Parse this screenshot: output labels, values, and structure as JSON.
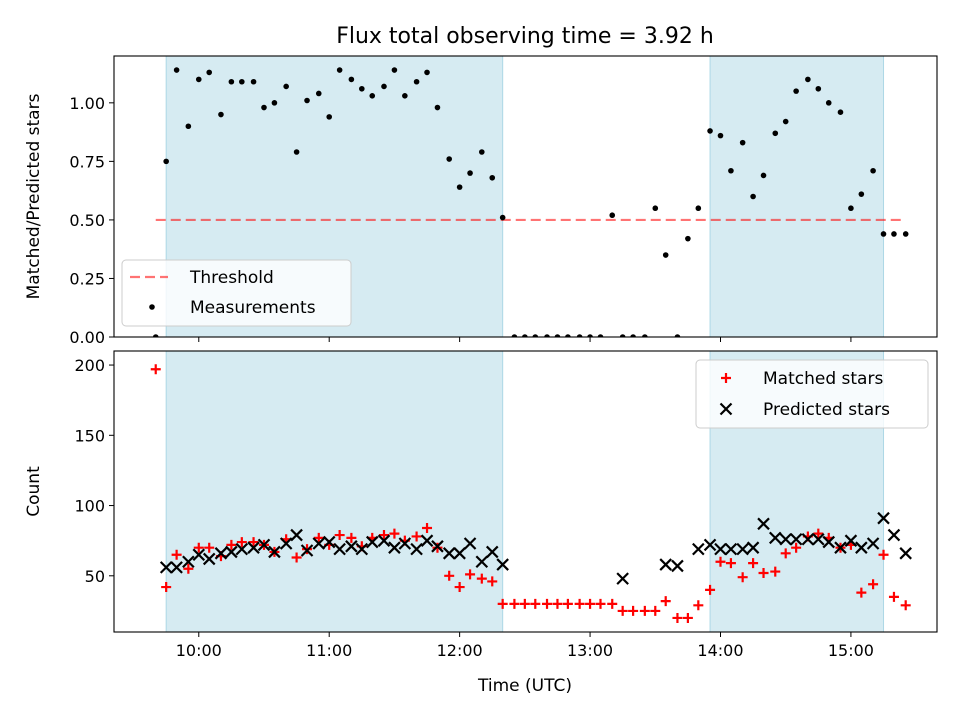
{
  "figure": {
    "title": "Flux total observing time = 3.92 h",
    "xlabel": "Time (UTC)",
    "x_ticks": [
      "10:00",
      "11:00",
      "12:00",
      "13:00",
      "14:00",
      "15:00"
    ],
    "x_tick_values": [
      10.0,
      11.0,
      12.0,
      13.0,
      14.0,
      15.0
    ],
    "xlim": [
      9.35,
      15.66
    ]
  },
  "shaded_intervals": [
    [
      9.75,
      12.33
    ],
    [
      13.92,
      15.25
    ]
  ],
  "colors": {
    "shade": "#add8e6",
    "threshold": "#ff0000",
    "measurements": "#000000",
    "matched": "#ff0000",
    "predicted": "#000000"
  },
  "chart_data": [
    {
      "type": "scatter",
      "panel": "top",
      "ylabel": "Matched/Predicted stars",
      "ylim": [
        0,
        1.2
      ],
      "y_ticks": [
        "0.00",
        "0.25",
        "0.50",
        "0.75",
        "1.00"
      ],
      "y_tick_values": [
        0,
        0.25,
        0.5,
        0.75,
        1.0
      ],
      "legend": {
        "position": "lower-left",
        "entries": [
          "Threshold",
          "Measurements"
        ]
      },
      "threshold": {
        "name": "Threshold",
        "value": 0.5,
        "x_range": [
          9.67,
          15.42
        ]
      },
      "series": [
        {
          "name": "Measurements",
          "x": [
            9.67,
            9.75,
            9.83,
            9.92,
            10.0,
            10.08,
            10.17,
            10.25,
            10.33,
            10.42,
            10.5,
            10.58,
            10.67,
            10.75,
            10.83,
            10.92,
            11.0,
            11.08,
            11.17,
            11.25,
            11.33,
            11.42,
            11.5,
            11.58,
            11.67,
            11.75,
            11.83,
            11.92,
            12.0,
            12.08,
            12.17,
            12.25,
            12.33,
            12.42,
            12.5,
            12.58,
            12.67,
            12.75,
            12.83,
            12.92,
            13.0,
            13.08,
            13.17,
            13.25,
            13.33,
            13.42,
            13.5,
            13.58,
            13.67,
            13.75,
            13.83,
            13.92,
            14.0,
            14.08,
            14.17,
            14.25,
            14.33,
            14.42,
            14.5,
            14.58,
            14.67,
            14.75,
            14.83,
            14.92,
            15.0,
            15.08,
            15.17,
            15.25,
            15.33,
            15.42
          ],
          "y": [
            0.0,
            0.75,
            1.14,
            0.9,
            1.1,
            1.13,
            0.95,
            1.09,
            1.09,
            1.09,
            0.98,
            1.0,
            1.07,
            0.79,
            1.01,
            1.04,
            0.94,
            1.14,
            1.1,
            1.06,
            1.03,
            1.07,
            1.14,
            1.03,
            1.09,
            1.13,
            0.98,
            0.76,
            0.64,
            0.7,
            0.79,
            0.68,
            0.51,
            0.0,
            0.0,
            0.0,
            0.0,
            0.0,
            0.0,
            0.0,
            0.0,
            0.0,
            0.52,
            0.0,
            0.0,
            0.0,
            0.55,
            0.35,
            0.0,
            0.42,
            0.55,
            0.88,
            0.86,
            0.71,
            0.83,
            0.6,
            0.69,
            0.87,
            0.92,
            1.05,
            1.1,
            1.06,
            1.0,
            0.96,
            0.55,
            0.61,
            0.71,
            0.44,
            0.44,
            0.44
          ]
        }
      ]
    },
    {
      "type": "scatter",
      "panel": "bottom",
      "ylabel": "Count",
      "ylim": [
        10,
        210
      ],
      "y_ticks": [
        "50",
        "100",
        "150",
        "200"
      ],
      "y_tick_values": [
        50,
        100,
        150,
        200
      ],
      "legend": {
        "position": "upper-right",
        "entries": [
          "Matched stars",
          "Predicted stars"
        ]
      },
      "series": [
        {
          "name": "Matched stars",
          "marker": "plus",
          "x": [
            9.67,
            9.75,
            9.83,
            9.92,
            10.0,
            10.08,
            10.17,
            10.25,
            10.33,
            10.42,
            10.5,
            10.58,
            10.67,
            10.75,
            10.83,
            10.92,
            11.0,
            11.08,
            11.17,
            11.25,
            11.33,
            11.42,
            11.5,
            11.58,
            11.67,
            11.75,
            11.83,
            11.92,
            12.0,
            12.08,
            12.17,
            12.25,
            12.33,
            12.42,
            12.5,
            12.58,
            12.67,
            12.75,
            12.83,
            12.92,
            13.0,
            13.08,
            13.17,
            13.25,
            13.33,
            13.42,
            13.5,
            13.58,
            13.67,
            13.75,
            13.83,
            13.92,
            14.0,
            14.08,
            14.17,
            14.25,
            14.33,
            14.42,
            14.5,
            14.58,
            14.67,
            14.75,
            14.83,
            14.92,
            15.0,
            15.08,
            15.17,
            15.25,
            15.33,
            15.42
          ],
          "y": [
            197,
            42,
            65,
            55,
            70,
            70,
            64,
            72,
            74,
            74,
            72,
            67,
            76,
            63,
            69,
            77,
            72,
            79,
            77,
            71,
            77,
            79,
            80,
            75,
            78,
            84,
            70,
            50,
            42,
            51,
            48,
            46,
            30,
            30,
            30,
            30,
            30,
            30,
            30,
            30,
            30,
            30,
            30,
            25,
            25,
            25,
            25,
            32,
            20,
            20,
            29,
            40,
            60,
            59,
            49,
            59,
            52,
            53,
            66,
            70,
            78,
            80,
            77,
            70,
            72,
            38,
            44,
            65,
            35,
            29
          ]
        },
        {
          "name": "Predicted stars",
          "marker": "x",
          "x": [
            9.75,
            9.83,
            9.92,
            10.0,
            10.08,
            10.17,
            10.25,
            10.33,
            10.42,
            10.5,
            10.58,
            10.67,
            10.75,
            10.83,
            10.92,
            11.0,
            11.08,
            11.17,
            11.25,
            11.33,
            11.42,
            11.5,
            11.58,
            11.67,
            11.75,
            11.83,
            11.92,
            12.0,
            12.08,
            12.17,
            12.25,
            12.33,
            13.25,
            13.58,
            13.67,
            13.83,
            13.92,
            14.0,
            14.08,
            14.17,
            14.25,
            14.33,
            14.42,
            14.5,
            14.58,
            14.67,
            14.75,
            14.83,
            14.92,
            15.0,
            15.08,
            15.17,
            15.25,
            15.33,
            15.42
          ],
          "y": [
            56,
            56,
            60,
            65,
            62,
            66,
            67,
            69,
            70,
            72,
            67,
            73,
            79,
            68,
            73,
            74,
            69,
            71,
            69,
            74,
            75,
            70,
            73,
            69,
            75,
            71,
            66,
            66,
            73,
            60,
            67,
            58,
            48,
            58,
            57,
            69,
            72,
            69,
            69,
            69,
            70,
            87,
            77,
            76,
            76,
            76,
            76,
            74,
            70,
            75,
            70,
            73,
            91,
            79,
            66
          ]
        }
      ]
    }
  ]
}
